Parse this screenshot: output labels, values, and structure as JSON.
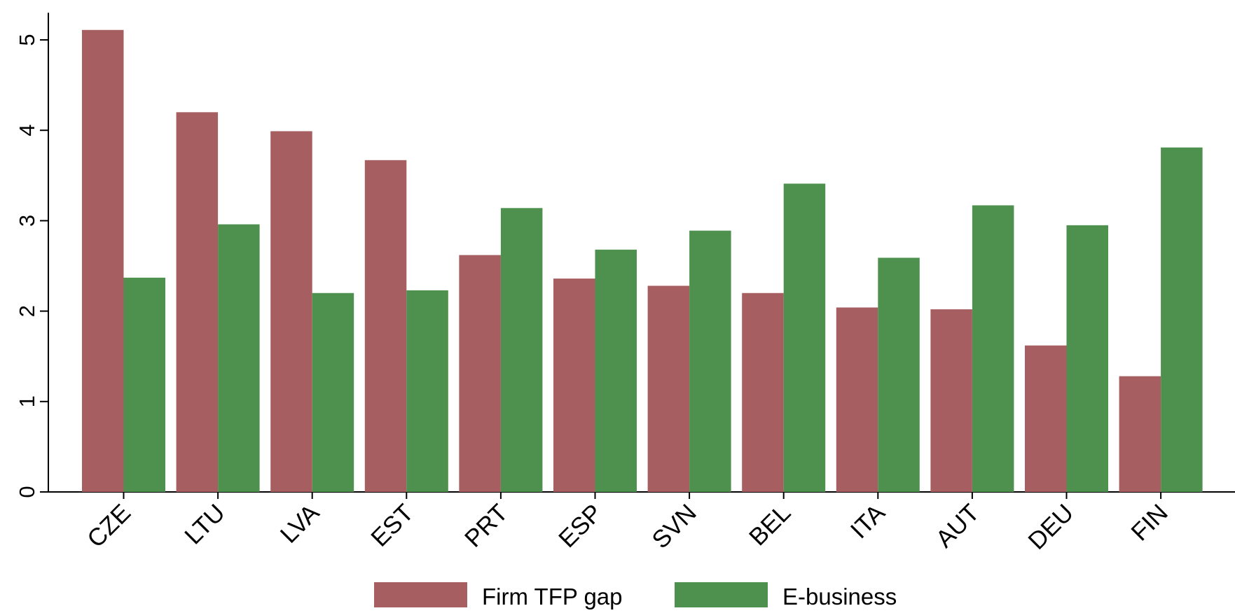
{
  "chart_data": {
    "type": "bar",
    "title": "",
    "xlabel": "",
    "ylabel": "",
    "ylim": [
      0,
      5.3
    ],
    "yticks": [
      "0",
      "1",
      "2",
      "3",
      "4",
      "5"
    ],
    "ytick_values": [
      0,
      1,
      2,
      3,
      4,
      5
    ],
    "grid": false,
    "legend_position": "bottom",
    "categories": [
      "CZE",
      "LTU",
      "LVA",
      "EST",
      "PRT",
      "ESP",
      "SVN",
      "BEL",
      "ITA",
      "AUT",
      "DEU",
      "FIN"
    ],
    "series": [
      {
        "name": "Firm TFP gap",
        "color": "#a65e61",
        "values": [
          5.11,
          4.2,
          3.99,
          3.67,
          2.62,
          2.36,
          2.28,
          2.2,
          2.04,
          2.02,
          1.62,
          1.28
        ]
      },
      {
        "name": "E-business",
        "color": "#4e914e",
        "values": [
          2.37,
          2.96,
          2.2,
          2.23,
          3.14,
          2.68,
          2.89,
          3.41,
          2.59,
          3.17,
          2.95,
          3.81
        ]
      }
    ]
  }
}
